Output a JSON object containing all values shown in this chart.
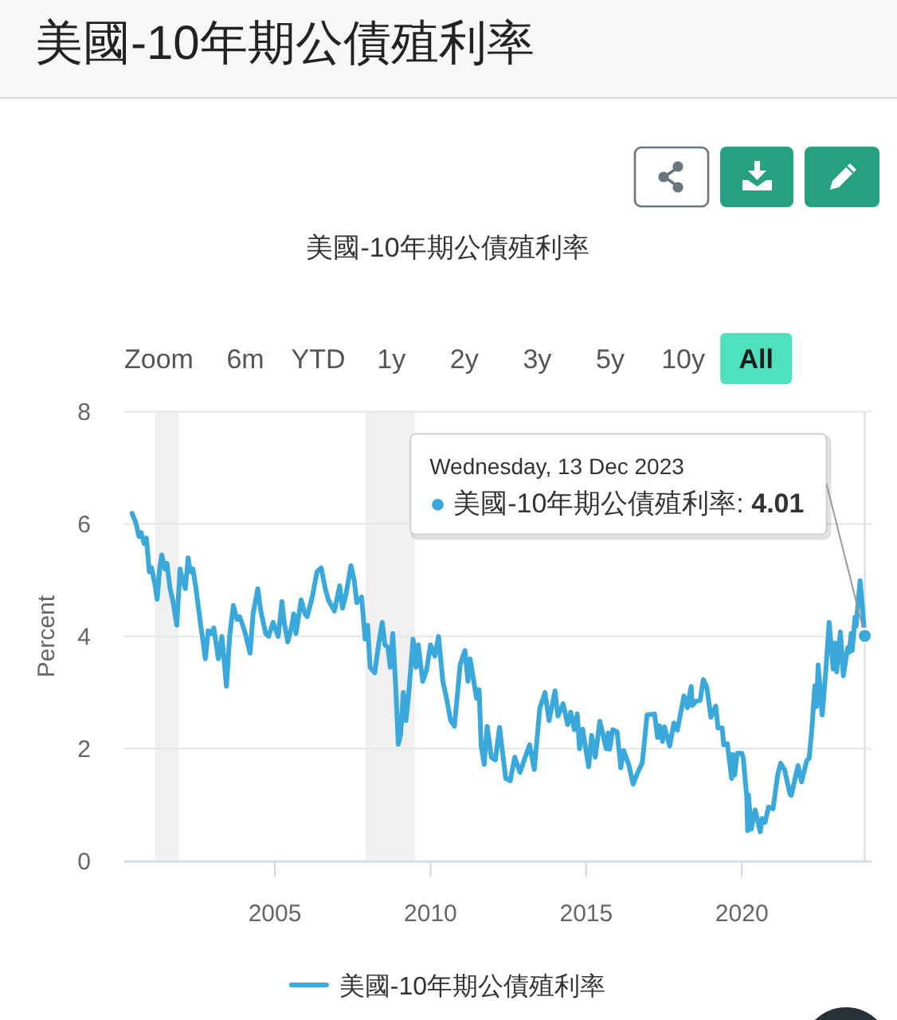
{
  "chart_data": {
    "type": "line",
    "title": "美國-10年期公債殖利率",
    "subtitle": "美國-10年期公債殖利率",
    "ylabel": "Percent",
    "xlim": [
      "2000-03-01",
      "2024-03-01"
    ],
    "ylim": [
      0,
      8
    ],
    "xticks": [
      "2005",
      "2010",
      "2015",
      "2020"
    ],
    "yticks": [
      0,
      2,
      4,
      6,
      8
    ],
    "grid": "y",
    "legend": "bottom",
    "bands": [
      {
        "axis": "x",
        "from": "2001-03-01",
        "to": "2001-11-30",
        "color": "#f0f0f0"
      },
      {
        "axis": "x",
        "from": "2007-12-01",
        "to": "2009-06-30",
        "color": "#f0f0f0"
      }
    ],
    "ref_lines": [
      {
        "axis": "x",
        "value": "2023-12-13",
        "color": "#e3e3e3"
      }
    ],
    "annotations": [
      {
        "text": "Wednesday, 13 Dec 2023\n● 美國-10年期公債殖利率: 4.01",
        "x": "2023-12-13",
        "y": 4.01
      },
      "Zoom",
      "6m",
      "YTD",
      "1y",
      "2y",
      "3y",
      "5y",
      "10y",
      "All"
    ],
    "series": [
      {
        "name": "美國-10年期公債殖利率",
        "color": "#3aa8da",
        "x": [
          "2000-06-01",
          "2000-07-15",
          "2000-08-20",
          "2000-09-15",
          "2000-10-20",
          "2000-11-15",
          "2000-12-20",
          "2001-01-15",
          "2001-02-20",
          "2001-03-22",
          "2001-04-20",
          "2001-05-15",
          "2001-06-20",
          "2001-07-15",
          "2001-08-20",
          "2001-09-20",
          "2001-11-07",
          "2001-12-15",
          "2002-01-15",
          "2002-02-15",
          "2002-03-20",
          "2002-04-15",
          "2002-05-15",
          "2002-06-20",
          "2002-07-20",
          "2002-08-15",
          "2002-10-09",
          "2002-11-10",
          "2002-12-15",
          "2003-01-15",
          "2003-03-10",
          "2003-04-20",
          "2003-06-13",
          "2003-07-20",
          "2003-09-01",
          "2003-10-15",
          "2003-11-15",
          "2003-12-20",
          "2004-01-20",
          "2004-03-16",
          "2004-04-20",
          "2004-06-14",
          "2004-07-20",
          "2004-09-15",
          "2004-10-20",
          "2004-12-10",
          "2005-02-09",
          "2005-03-25",
          "2005-04-20",
          "2005-06-01",
          "2005-07-20",
          "2005-08-10",
          "2005-09-05",
          "2005-11-05",
          "2005-12-20",
          "2006-01-15",
          "2006-03-15",
          "2006-05-10",
          "2006-06-28",
          "2006-08-15",
          "2006-09-20",
          "2006-11-30",
          "2007-01-31",
          "2007-03-05",
          "2007-04-15",
          "2007-06-12",
          "2007-07-20",
          "2007-08-20",
          "2007-10-15",
          "2007-11-26",
          "2007-12-25",
          "2008-01-23",
          "2008-03-17",
          "2008-05-01",
          "2008-06-13",
          "2008-07-15",
          "2008-08-20",
          "2008-09-15",
          "2008-10-15",
          "2008-11-20",
          "2008-12-18",
          "2009-01-15",
          "2009-02-15",
          "2009-03-18",
          "2009-04-15",
          "2009-06-10",
          "2009-07-15",
          "2009-08-10",
          "2009-10-01",
          "2009-11-15",
          "2009-12-31",
          "2010-02-20",
          "2010-04-05",
          "2010-05-25",
          "2010-07-01",
          "2010-08-25",
          "2010-10-08",
          "2010-12-15",
          "2011-02-08",
          "2011-03-16",
          "2011-04-10",
          "2011-06-25",
          "2011-07-25",
          "2011-08-18",
          "2011-09-22",
          "2011-10-27",
          "2011-12-15",
          "2012-01-31",
          "2012-03-20",
          "2012-06-01",
          "2012-07-24",
          "2012-09-15",
          "2012-11-15",
          "2012-12-31",
          "2013-03-08",
          "2013-05-02",
          "2013-07-05",
          "2013-09-05",
          "2013-10-22",
          "2013-12-31",
          "2014-02-03",
          "2014-04-05",
          "2014-05-28",
          "2014-07-03",
          "2014-08-15",
          "2014-09-18",
          "2014-10-15",
          "2014-11-20",
          "2015-01-30",
          "2015-03-06",
          "2015-04-17",
          "2015-06-10",
          "2015-08-24",
          "2015-09-15",
          "2015-10-02",
          "2015-11-09",
          "2015-12-30",
          "2016-02-11",
          "2016-03-15",
          "2016-05-15",
          "2016-07-05",
          "2016-08-25",
          "2016-10-20",
          "2016-12-15",
          "2017-03-13",
          "2017-04-17",
          "2017-05-10",
          "2017-06-14",
          "2017-07-07",
          "2017-09-07",
          "2017-10-26",
          "2017-12-05",
          "2018-02-21",
          "2018-04-02",
          "2018-05-17",
          "2018-05-29",
          "2018-07-15",
          "2018-08-30",
          "2018-10-05",
          "2018-11-15",
          "2019-01-03",
          "2019-03-01",
          "2019-03-27",
          "2019-05-15",
          "2019-06-03",
          "2019-07-15",
          "2019-09-03",
          "2019-09-13",
          "2019-10-08",
          "2019-11-07",
          "2019-12-31",
          "2020-01-17",
          "2020-02-28",
          "2020-03-09",
          "2020-03-18",
          "2020-04-21",
          "2020-06-05",
          "2020-08-04",
          "2020-08-26",
          "2020-09-30",
          "2020-11-09",
          "2020-12-31",
          "2021-02-25",
          "2021-03-31",
          "2021-05-15",
          "2021-07-19",
          "2021-08-03",
          "2021-10-21",
          "2021-12-01",
          "2022-01-31",
          "2022-02-28",
          "2022-03-31",
          "2022-05-06",
          "2022-05-26",
          "2022-06-14",
          "2022-08-01",
          "2022-09-15",
          "2022-10-21",
          "2022-12-07",
          "2022-12-30",
          "2023-01-18",
          "2023-03-02",
          "2023-04-06",
          "2023-05-26",
          "2023-06-15",
          "2023-07-06",
          "2023-07-19",
          "2023-08-21",
          "2023-09-01",
          "2023-10-19",
          "2023-11-15",
          "2023-12-01",
          "2023-12-13"
        ],
        "values": [
          6.19,
          6.02,
          5.78,
          5.85,
          5.65,
          5.75,
          5.15,
          5.22,
          4.95,
          4.66,
          5.2,
          5.45,
          5.2,
          5.3,
          4.85,
          4.65,
          4.2,
          5.2,
          5.0,
          4.85,
          5.4,
          5.15,
          5.2,
          4.85,
          4.5,
          4.2,
          3.6,
          4.1,
          4.05,
          4.15,
          3.6,
          4.0,
          3.11,
          4.0,
          4.55,
          4.3,
          4.35,
          4.2,
          4.05,
          3.7,
          4.4,
          4.85,
          4.45,
          4.05,
          4.0,
          4.25,
          4.0,
          4.62,
          4.25,
          3.9,
          4.2,
          4.4,
          4.05,
          4.65,
          4.4,
          4.35,
          4.7,
          5.15,
          5.22,
          4.85,
          4.65,
          4.45,
          4.9,
          4.5,
          4.75,
          5.26,
          5.0,
          4.6,
          4.7,
          3.95,
          4.2,
          3.45,
          3.35,
          3.85,
          4.25,
          3.85,
          3.8,
          3.45,
          4.05,
          3.05,
          2.08,
          2.25,
          3.0,
          2.5,
          2.9,
          3.95,
          3.45,
          3.85,
          3.2,
          3.4,
          3.85,
          3.65,
          4.0,
          3.2,
          2.95,
          2.5,
          2.4,
          3.5,
          3.75,
          3.2,
          3.6,
          2.9,
          3.05,
          2.05,
          1.72,
          2.4,
          1.85,
          1.8,
          2.38,
          1.47,
          1.43,
          1.85,
          1.58,
          1.78,
          2.07,
          1.63,
          2.72,
          3.0,
          2.5,
          3.03,
          2.58,
          2.8,
          2.43,
          2.65,
          2.34,
          2.62,
          2.0,
          2.35,
          1.68,
          2.24,
          1.85,
          2.49,
          2.0,
          2.28,
          1.99,
          2.34,
          2.3,
          1.66,
          1.97,
          1.71,
          1.37,
          1.57,
          1.75,
          2.6,
          2.62,
          2.2,
          2.41,
          2.13,
          2.39,
          2.05,
          2.46,
          2.33,
          2.94,
          2.73,
          3.11,
          2.77,
          2.85,
          2.86,
          3.23,
          3.1,
          2.56,
          2.76,
          2.37,
          2.37,
          2.07,
          2.09,
          1.47,
          1.9,
          1.53,
          1.92,
          1.92,
          1.84,
          1.13,
          0.54,
          1.18,
          0.57,
          0.91,
          0.52,
          0.76,
          0.69,
          0.96,
          0.93,
          1.54,
          1.74,
          1.63,
          1.19,
          1.17,
          1.7,
          1.41,
          1.79,
          1.83,
          2.32,
          3.12,
          2.75,
          3.49,
          2.6,
          3.45,
          4.25,
          3.42,
          3.88,
          3.37,
          4.08,
          3.3,
          3.8,
          3.72,
          4.05,
          3.75,
          4.34,
          4.18,
          4.99,
          4.53,
          4.22,
          4.01
        ]
      }
    ]
  }
}
